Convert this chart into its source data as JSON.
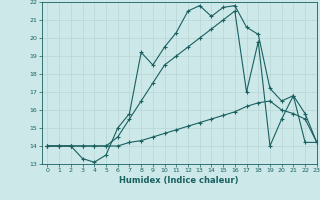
{
  "xlabel": "Humidex (Indice chaleur)",
  "xlim": [
    -0.5,
    23
  ],
  "ylim": [
    13,
    22
  ],
  "yticks": [
    13,
    14,
    15,
    16,
    17,
    18,
    19,
    20,
    21,
    22
  ],
  "xticks": [
    0,
    1,
    2,
    3,
    4,
    5,
    6,
    7,
    8,
    9,
    10,
    11,
    12,
    13,
    14,
    15,
    16,
    17,
    18,
    19,
    20,
    21,
    22,
    23
  ],
  "background_color": "#cce8e8",
  "grid_color": "#b8d4d4",
  "line_color": "#1a6060",
  "line1_x": [
    0,
    1,
    2,
    3,
    4,
    5,
    6,
    7,
    8,
    9,
    10,
    11,
    12,
    13,
    14,
    15,
    16,
    17,
    18,
    19,
    20,
    21,
    22,
    23
  ],
  "line1_y": [
    14.0,
    14.0,
    14.0,
    14.0,
    14.0,
    14.0,
    14.0,
    14.2,
    14.3,
    14.5,
    14.7,
    14.9,
    15.1,
    15.3,
    15.5,
    15.7,
    15.9,
    16.2,
    16.4,
    16.5,
    16.0,
    15.8,
    15.5,
    14.2
  ],
  "line2_x": [
    0,
    1,
    2,
    3,
    4,
    5,
    6,
    7,
    8,
    9,
    10,
    11,
    12,
    13,
    14,
    15,
    16,
    17,
    18,
    19,
    20,
    21,
    22,
    23
  ],
  "line2_y": [
    14.0,
    14.0,
    14.0,
    14.0,
    14.0,
    14.0,
    14.5,
    15.5,
    16.5,
    17.5,
    18.5,
    19.0,
    19.5,
    20.0,
    20.5,
    21.0,
    21.5,
    17.0,
    19.8,
    14.0,
    15.5,
    16.8,
    15.8,
    14.2
  ],
  "line3_x": [
    0,
    1,
    2,
    3,
    4,
    5,
    6,
    7,
    8,
    9,
    10,
    11,
    12,
    13,
    14,
    15,
    16,
    17,
    18,
    19,
    20,
    21,
    22,
    23
  ],
  "line3_y": [
    14.0,
    14.0,
    14.0,
    13.3,
    13.1,
    13.5,
    15.0,
    15.8,
    19.2,
    18.5,
    19.5,
    20.3,
    21.5,
    21.8,
    21.2,
    21.7,
    21.8,
    20.6,
    20.2,
    17.2,
    16.5,
    16.8,
    14.2,
    14.2
  ]
}
